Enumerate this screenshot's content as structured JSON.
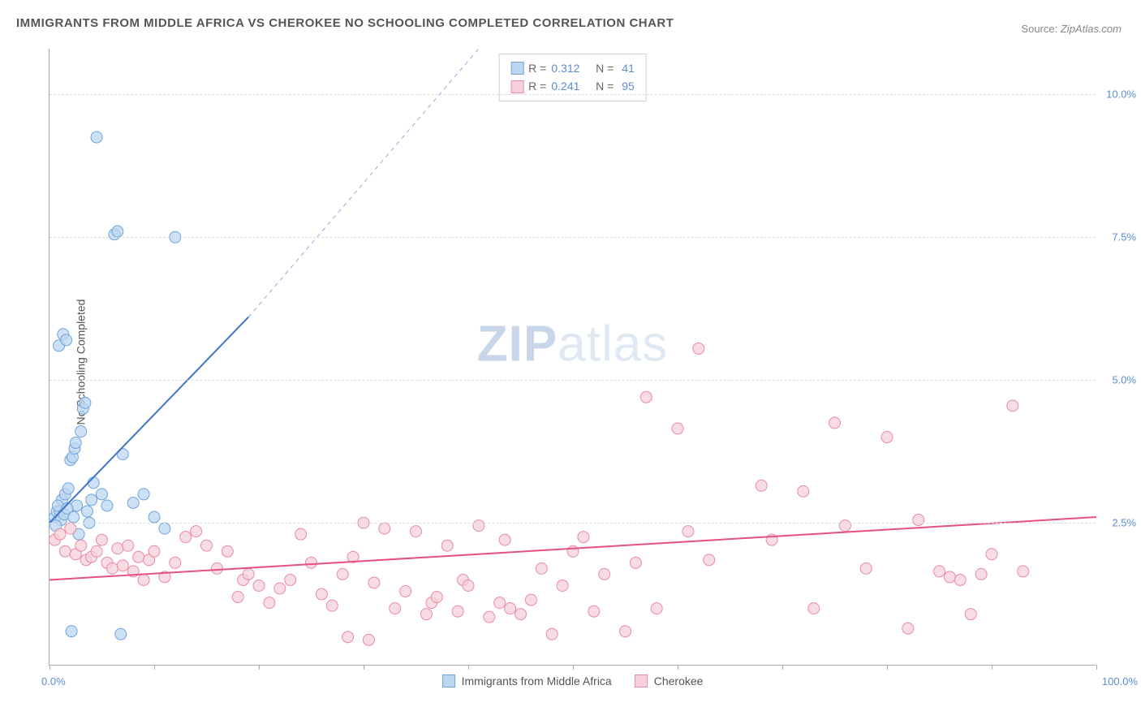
{
  "title": "IMMIGRANTS FROM MIDDLE AFRICA VS CHEROKEE NO SCHOOLING COMPLETED CORRELATION CHART",
  "source_label": "Source:",
  "source_value": "ZipAtlas.com",
  "ylabel": "No Schooling Completed",
  "watermark_a": "ZIP",
  "watermark_b": "atlas",
  "chart": {
    "type": "scatter",
    "xlim": [
      0,
      100
    ],
    "ylim": [
      0,
      10.8
    ],
    "yticks": [
      2.5,
      5.0,
      7.5,
      10.0
    ],
    "ytick_labels": [
      "2.5%",
      "5.0%",
      "7.5%",
      "10.0%"
    ],
    "xtick_labels": {
      "min": "0.0%",
      "max": "100.0%"
    },
    "xtick_positions": [
      0,
      10,
      20,
      30,
      40,
      50,
      60,
      70,
      80,
      90,
      100
    ],
    "background": "#ffffff",
    "grid_color": "#dddddd",
    "axis_color": "#aaaaaa",
    "tick_label_color": "#5b8dd6",
    "marker_radius": 7,
    "series": [
      {
        "name": "Immigrants from Middle Africa",
        "color_fill": "#bcd5f0",
        "color_stroke": "#6fa4dc",
        "R": "0.312",
        "N": "41",
        "trend": {
          "x1": 0,
          "y1": 2.5,
          "x2": 19,
          "y2": 6.1,
          "dash_x2": 41,
          "dash_y2": 10.8,
          "stroke": "#3e76c8",
          "width": 2
        },
        "points": [
          [
            0.5,
            2.6
          ],
          [
            0.7,
            2.7
          ],
          [
            1.0,
            2.7
          ],
          [
            1.2,
            2.9
          ],
          [
            1.5,
            3.0
          ],
          [
            1.8,
            3.1
          ],
          [
            2.0,
            3.6
          ],
          [
            2.2,
            3.65
          ],
          [
            2.4,
            3.8
          ],
          [
            2.6,
            2.8
          ],
          [
            2.8,
            2.3
          ],
          [
            3.0,
            4.1
          ],
          [
            3.2,
            4.5
          ],
          [
            3.4,
            4.6
          ],
          [
            0.9,
            5.6
          ],
          [
            1.3,
            5.8
          ],
          [
            1.6,
            5.7
          ],
          [
            3.6,
            2.7
          ],
          [
            4.0,
            2.9
          ],
          [
            4.2,
            3.2
          ],
          [
            5.0,
            3.0
          ],
          [
            5.5,
            2.8
          ],
          [
            6.2,
            7.55
          ],
          [
            6.5,
            7.6
          ],
          [
            7.0,
            3.7
          ],
          [
            8.0,
            2.85
          ],
          [
            9.0,
            3.0
          ],
          [
            10.0,
            2.6
          ],
          [
            11.0,
            2.4
          ],
          [
            12.0,
            7.5
          ],
          [
            3.8,
            2.5
          ],
          [
            1.1,
            2.55
          ],
          [
            2.1,
            0.6
          ],
          [
            6.8,
            0.55
          ],
          [
            0.6,
            2.45
          ],
          [
            0.8,
            2.8
          ],
          [
            1.4,
            2.65
          ],
          [
            1.7,
            2.75
          ],
          [
            2.3,
            2.6
          ],
          [
            4.5,
            9.25
          ],
          [
            2.5,
            3.9
          ]
        ]
      },
      {
        "name": "Cherokee",
        "color_fill": "#f6d0da",
        "color_stroke": "#e88ba5",
        "R": "0.241",
        "N": "95",
        "trend": {
          "x1": 0,
          "y1": 1.5,
          "x2": 100,
          "y2": 2.6,
          "stroke": "#e64f87",
          "width": 2
        },
        "points": [
          [
            0.5,
            2.2
          ],
          [
            1,
            2.3
          ],
          [
            1.5,
            2.0
          ],
          [
            2,
            2.4
          ],
          [
            2.5,
            1.95
          ],
          [
            3,
            2.1
          ],
          [
            3.5,
            1.85
          ],
          [
            4,
            1.9
          ],
          [
            4.5,
            2.0
          ],
          [
            5,
            2.2
          ],
          [
            5.5,
            1.8
          ],
          [
            6,
            1.7
          ],
          [
            6.5,
            2.05
          ],
          [
            7,
            1.75
          ],
          [
            7.5,
            2.1
          ],
          [
            8,
            1.65
          ],
          [
            8.5,
            1.9
          ],
          [
            9,
            1.5
          ],
          [
            9.5,
            1.85
          ],
          [
            10,
            2.0
          ],
          [
            11,
            1.55
          ],
          [
            12,
            1.8
          ],
          [
            13,
            2.25
          ],
          [
            14,
            2.35
          ],
          [
            15,
            2.1
          ],
          [
            16,
            1.7
          ],
          [
            17,
            2.0
          ],
          [
            18,
            1.2
          ],
          [
            18.5,
            1.5
          ],
          [
            19,
            1.6
          ],
          [
            20,
            1.4
          ],
          [
            21,
            1.1
          ],
          [
            22,
            1.35
          ],
          [
            23,
            1.5
          ],
          [
            24,
            2.3
          ],
          [
            25,
            1.8
          ],
          [
            26,
            1.25
          ],
          [
            27,
            1.05
          ],
          [
            28,
            1.6
          ],
          [
            28.5,
            0.5
          ],
          [
            29,
            1.9
          ],
          [
            30,
            2.5
          ],
          [
            30.5,
            0.45
          ],
          [
            31,
            1.45
          ],
          [
            32,
            2.4
          ],
          [
            33,
            1.0
          ],
          [
            34,
            1.3
          ],
          [
            35,
            2.35
          ],
          [
            36,
            0.9
          ],
          [
            36.5,
            1.1
          ],
          [
            37,
            1.2
          ],
          [
            38,
            2.1
          ],
          [
            39,
            0.95
          ],
          [
            39.5,
            1.5
          ],
          [
            40,
            1.4
          ],
          [
            41,
            2.45
          ],
          [
            42,
            0.85
          ],
          [
            43,
            1.1
          ],
          [
            43.5,
            2.2
          ],
          [
            44,
            1.0
          ],
          [
            45,
            0.9
          ],
          [
            46,
            1.15
          ],
          [
            47,
            1.7
          ],
          [
            48,
            0.55
          ],
          [
            49,
            1.4
          ],
          [
            50,
            2.0
          ],
          [
            51,
            2.25
          ],
          [
            52,
            0.95
          ],
          [
            53,
            1.6
          ],
          [
            55,
            0.6
          ],
          [
            56,
            1.8
          ],
          [
            57,
            4.7
          ],
          [
            58,
            1.0
          ],
          [
            60,
            4.15
          ],
          [
            61,
            2.35
          ],
          [
            62,
            5.55
          ],
          [
            63,
            1.85
          ],
          [
            68,
            3.15
          ],
          [
            69,
            2.2
          ],
          [
            72,
            3.05
          ],
          [
            73,
            1.0
          ],
          [
            75,
            4.25
          ],
          [
            76,
            2.45
          ],
          [
            78,
            1.7
          ],
          [
            80,
            4.0
          ],
          [
            82,
            0.65
          ],
          [
            83,
            2.55
          ],
          [
            85,
            1.65
          ],
          [
            86,
            1.55
          ],
          [
            87,
            1.5
          ],
          [
            89,
            1.6
          ],
          [
            90,
            1.95
          ],
          [
            92,
            4.55
          ],
          [
            93,
            1.65
          ],
          [
            88,
            0.9
          ]
        ]
      }
    ],
    "legend_bottom": [
      {
        "label": "Immigrants from Middle Africa",
        "fill": "#bcd5f0",
        "stroke": "#6fa4dc"
      },
      {
        "label": "Cherokee",
        "fill": "#f6d0da",
        "stroke": "#e88ba5"
      }
    ]
  }
}
